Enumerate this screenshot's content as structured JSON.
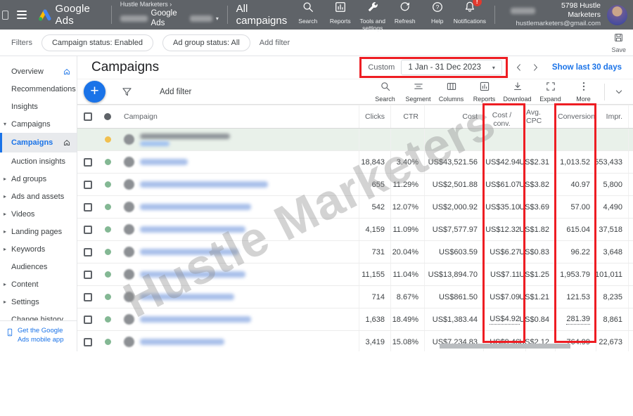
{
  "topbar": {
    "product": "Google Ads",
    "breadcrumb_account": "Hustle Marketers  ›",
    "breadcrumb_sub": "Google Ads",
    "page": "All campaigns",
    "actions": [
      {
        "id": "search",
        "label": "Search"
      },
      {
        "id": "reports",
        "label": "Reports"
      },
      {
        "id": "tools",
        "label": "Tools and settings"
      },
      {
        "id": "refresh",
        "label": "Refresh"
      },
      {
        "id": "help",
        "label": "Help"
      },
      {
        "id": "notifications",
        "label": "Notifications",
        "badge": "!"
      }
    ],
    "account_name": "5798 Hustle Marketers",
    "account_email": "hustlemarketers@gmail.com"
  },
  "filterbar": {
    "label": "Filters",
    "chips": [
      "Campaign status: Enabled",
      "Ad group status: All"
    ],
    "add_filter": "Add filter",
    "save": "Save"
  },
  "sidebar": {
    "items": [
      {
        "id": "overview",
        "label": "Overview",
        "icon": "home-blue"
      },
      {
        "id": "recommendations",
        "label": "Recommendations"
      },
      {
        "id": "insights",
        "label": "Insights"
      },
      {
        "id": "campaigns-section",
        "label": "Campaigns",
        "caret": "down"
      },
      {
        "id": "campaigns",
        "label": "Campaigns",
        "selected": true,
        "icon": "home"
      },
      {
        "id": "auction-insights",
        "label": "Auction insights"
      },
      {
        "id": "ad-groups",
        "label": "Ad groups",
        "caret": "right"
      },
      {
        "id": "ads-and-assets",
        "label": "Ads and assets",
        "caret": "right"
      },
      {
        "id": "videos",
        "label": "Videos",
        "caret": "right"
      },
      {
        "id": "landing-pages",
        "label": "Landing pages",
        "caret": "right"
      },
      {
        "id": "keywords",
        "label": "Keywords",
        "caret": "right"
      },
      {
        "id": "audiences",
        "label": "Audiences"
      },
      {
        "id": "content",
        "label": "Content",
        "caret": "right"
      },
      {
        "id": "settings",
        "label": "Settings",
        "caret": "right"
      },
      {
        "id": "change-history",
        "label": "Change history"
      }
    ],
    "promo": "Get the Google Ads mobile app"
  },
  "main": {
    "title": "Campaigns",
    "date": {
      "mode": "Custom",
      "range": "1 Jan - 31 Dec 2023",
      "quick_link": "Show last 30 days"
    },
    "toolbar": {
      "add_filter": "Add filter",
      "tools": [
        {
          "id": "search",
          "label": "Search"
        },
        {
          "id": "segment",
          "label": "Segment"
        },
        {
          "id": "columns",
          "label": "Columns"
        },
        {
          "id": "reports",
          "label": "Reports"
        },
        {
          "id": "download",
          "label": "Download"
        },
        {
          "id": "expand",
          "label": "Expand"
        },
        {
          "id": "more",
          "label": "More"
        }
      ]
    }
  },
  "table": {
    "columns": {
      "campaign": "Campaign",
      "clicks": "Clicks",
      "ctr": "CTR",
      "cost": "Cost",
      "cost_conv_line1": "Cost /",
      "cost_conv_line2": "conv.",
      "avg_cpc": "Avg. CPC",
      "conversions": "Conversions",
      "impr": "Impr."
    },
    "rows": [
      {
        "summary": true,
        "status": "status_yellow",
        "blur": 128
      },
      {
        "status": "status_green",
        "blur": 68,
        "clicks": "18,843",
        "ctr": "3.40%",
        "cost": "US$43,521.56",
        "cost_conv": "US$42.94",
        "avg_cpc": "US$2.31",
        "conversions": "1,013.52",
        "impr": "553,433"
      },
      {
        "status": "status_green",
        "blur": 182,
        "clicks": "655",
        "ctr": "11.29%",
        "cost": "US$2,501.88",
        "cost_conv": "US$61.07",
        "avg_cpc": "US$3.82",
        "conversions": "40.97",
        "impr": "5,800"
      },
      {
        "status": "status_green",
        "blur": 158,
        "clicks": "542",
        "ctr": "12.07%",
        "cost": "US$2,000.92",
        "cost_conv": "US$35.10",
        "avg_cpc": "US$3.69",
        "conversions": "57.00",
        "impr": "4,490"
      },
      {
        "status": "status_green",
        "blur": 150,
        "clicks": "4,159",
        "ctr": "11.09%",
        "cost": "US$7,577.97",
        "cost_conv": "US$12.32",
        "avg_cpc": "US$1.82",
        "conversions": "615.04",
        "impr": "37,518"
      },
      {
        "status": "status_green",
        "blur": 140,
        "clicks": "731",
        "ctr": "20.04%",
        "cost": "US$603.59",
        "cost_conv": "US$6.27",
        "avg_cpc": "US$0.83",
        "conversions": "96.22",
        "impr": "3,648"
      },
      {
        "status": "status_green",
        "blur": 150,
        "clicks": "11,155",
        "ctr": "11.04%",
        "cost": "US$13,894.70",
        "cost_conv": "US$7.11",
        "avg_cpc": "US$1.25",
        "conversions": "1,953.79",
        "impr": "101,011"
      },
      {
        "status": "status_green",
        "blur": 134,
        "clicks": "714",
        "ctr": "8.67%",
        "cost": "US$861.50",
        "cost_conv": "US$7.09",
        "avg_cpc": "US$1.21",
        "conversions": "121.53",
        "impr": "8,235"
      },
      {
        "status": "status_green",
        "blur": 158,
        "clicks": "1,638",
        "ctr": "18.49%",
        "cost": "US$1,383.44",
        "cost_conv": "US$4.92",
        "avg_cpc": "US$0.84",
        "conversions": "281.39",
        "impr": "8,861",
        "dotted": [
          "cost_conv",
          "conversions"
        ]
      },
      {
        "status": "status_green",
        "blur": 120,
        "clicks": "3,419",
        "ctr": "15.08%",
        "cost": "US$7,234.83",
        "cost_conv": "US$9.46",
        "avg_cpc": "US$2.12",
        "conversions": "764.99",
        "impr": "22,673"
      }
    ]
  },
  "watermark": "Hustle Marketers",
  "annotations": {
    "highlight_color": "#ee1d23",
    "highlighted": [
      "date-range",
      "cost-conv-column",
      "conversions-column"
    ]
  },
  "colors": {
    "accent": "#1a73e8",
    "topbar_bg": "#5f6368",
    "status_green": "#84b894",
    "status_yellow": "#f1c04f"
  }
}
